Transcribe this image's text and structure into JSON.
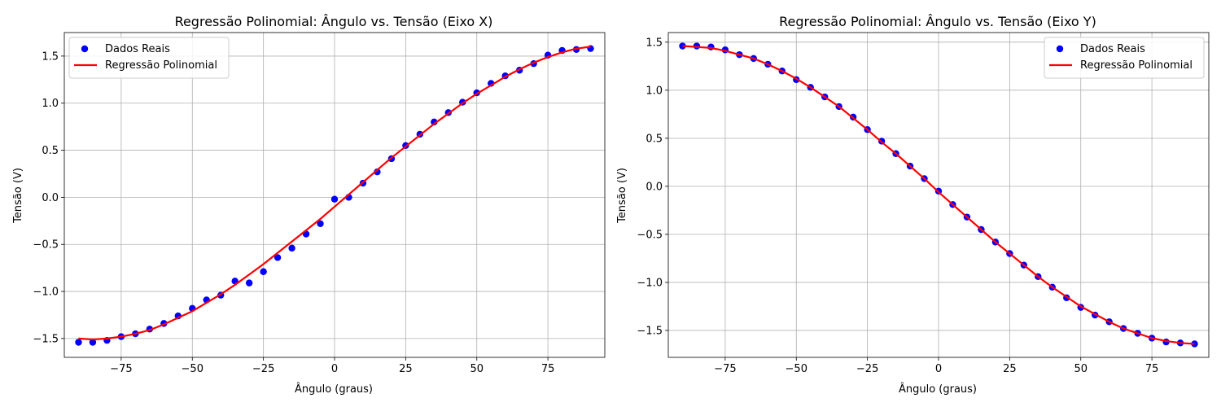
{
  "chart_data": [
    {
      "type": "scatter",
      "title": "Regressão Polinomial: Ângulo vs. Tensão (Eixo X)",
      "xlabel": "Ângulo (graus)",
      "ylabel": "Tensão (V)",
      "xlim": [
        -95,
        95
      ],
      "ylim": [
        -1.7,
        1.75
      ],
      "xticks": [
        -75,
        -50,
        -25,
        0,
        25,
        50,
        75
      ],
      "yticks": [
        -1.5,
        -1.0,
        -0.5,
        0.0,
        0.5,
        1.0,
        1.5
      ],
      "xtick_labels": [
        "−75",
        "−50",
        "−25",
        "0",
        "25",
        "50",
        "75"
      ],
      "ytick_labels": [
        "−1.5",
        "−1.0",
        "−0.5",
        "0.0",
        "0.5",
        "1.0",
        "1.5"
      ],
      "grid": true,
      "legend_position": "top-left",
      "series": [
        {
          "name": "Dados Reais",
          "kind": "scatter",
          "color": "#0000ff",
          "x": [
            -90,
            -85,
            -80,
            -75,
            -70,
            -65,
            -60,
            -55,
            -50,
            -45,
            -40,
            -35,
            -30,
            -25,
            -20,
            -15,
            -10,
            -5,
            0,
            5,
            10,
            15,
            20,
            25,
            30,
            35,
            40,
            45,
            50,
            55,
            60,
            65,
            70,
            75,
            80,
            85,
            90
          ],
          "y": [
            -1.54,
            -1.54,
            -1.52,
            -1.48,
            -1.45,
            -1.4,
            -1.34,
            -1.26,
            -1.18,
            -1.09,
            -1.04,
            -0.89,
            -0.91,
            -0.79,
            -0.64,
            -0.54,
            -0.39,
            -0.28,
            -0.02,
            0.0,
            0.15,
            0.27,
            0.41,
            0.55,
            0.67,
            0.8,
            0.9,
            1.01,
            1.11,
            1.21,
            1.29,
            1.35,
            1.42,
            1.51,
            1.56,
            1.57,
            1.58
          ]
        },
        {
          "name": "Regressão Polinomial",
          "kind": "line",
          "color": "#ff0000",
          "x": [
            -90,
            -85,
            -80,
            -75,
            -70,
            -65,
            -60,
            -55,
            -50,
            -45,
            -40,
            -35,
            -30,
            -25,
            -20,
            -15,
            -10,
            -5,
            0,
            5,
            10,
            15,
            20,
            25,
            30,
            35,
            40,
            45,
            50,
            55,
            60,
            65,
            70,
            75,
            80,
            85,
            90
          ],
          "y": [
            -1.5,
            -1.51,
            -1.5,
            -1.48,
            -1.45,
            -1.41,
            -1.35,
            -1.28,
            -1.21,
            -1.12,
            -1.03,
            -0.93,
            -0.82,
            -0.71,
            -0.59,
            -0.47,
            -0.35,
            -0.23,
            -0.1,
            0.03,
            0.16,
            0.29,
            0.42,
            0.54,
            0.66,
            0.78,
            0.89,
            1.0,
            1.1,
            1.19,
            1.28,
            1.36,
            1.43,
            1.49,
            1.54,
            1.58,
            1.6
          ]
        }
      ]
    },
    {
      "type": "scatter",
      "title": "Regressão Polinomial: Ângulo vs. Tensão (Eixo Y)",
      "xlabel": "Ângulo (graus)",
      "ylabel": "Tensão (V)",
      "xlim": [
        -95,
        95
      ],
      "ylim": [
        -1.78,
        1.6
      ],
      "xticks": [
        -75,
        -50,
        -25,
        0,
        25,
        50,
        75
      ],
      "yticks": [
        -1.5,
        -1.0,
        -0.5,
        0.0,
        0.5,
        1.0,
        1.5
      ],
      "xtick_labels": [
        "−75",
        "−50",
        "−25",
        "0",
        "25",
        "50",
        "75"
      ],
      "ytick_labels": [
        "−1.5",
        "−1.0",
        "−0.5",
        "0.0",
        "0.5",
        "1.0",
        "1.5"
      ],
      "grid": true,
      "legend_position": "top-right",
      "series": [
        {
          "name": "Dados Reais",
          "kind": "scatter",
          "color": "#0000ff",
          "x": [
            -90,
            -85,
            -80,
            -75,
            -70,
            -65,
            -60,
            -55,
            -50,
            -45,
            -40,
            -35,
            -30,
            -25,
            -20,
            -15,
            -10,
            -5,
            0,
            5,
            10,
            15,
            20,
            25,
            30,
            35,
            40,
            45,
            50,
            55,
            60,
            65,
            70,
            75,
            80,
            85,
            90
          ],
          "y": [
            1.46,
            1.46,
            1.45,
            1.42,
            1.37,
            1.33,
            1.27,
            1.2,
            1.11,
            1.03,
            0.93,
            0.83,
            0.72,
            0.59,
            0.47,
            0.34,
            0.21,
            0.08,
            -0.05,
            -0.19,
            -0.32,
            -0.45,
            -0.58,
            -0.7,
            -0.82,
            -0.94,
            -1.05,
            -1.16,
            -1.26,
            -1.34,
            -1.41,
            -1.48,
            -1.53,
            -1.58,
            -1.62,
            -1.63,
            -1.64
          ]
        },
        {
          "name": "Regressão Polinomial",
          "kind": "line",
          "color": "#ff0000",
          "x": [
            -90,
            -85,
            -80,
            -75,
            -70,
            -65,
            -60,
            -55,
            -50,
            -45,
            -40,
            -35,
            -30,
            -25,
            -20,
            -15,
            -10,
            -5,
            0,
            5,
            10,
            15,
            20,
            25,
            30,
            35,
            40,
            45,
            50,
            55,
            60,
            65,
            70,
            75,
            80,
            85,
            90
          ],
          "y": [
            1.46,
            1.45,
            1.44,
            1.41,
            1.37,
            1.33,
            1.27,
            1.2,
            1.12,
            1.03,
            0.93,
            0.83,
            0.71,
            0.59,
            0.46,
            0.34,
            0.21,
            0.08,
            -0.06,
            -0.19,
            -0.32,
            -0.45,
            -0.58,
            -0.7,
            -0.82,
            -0.94,
            -1.05,
            -1.15,
            -1.25,
            -1.33,
            -1.41,
            -1.48,
            -1.53,
            -1.58,
            -1.61,
            -1.63,
            -1.64
          ]
        }
      ]
    }
  ]
}
